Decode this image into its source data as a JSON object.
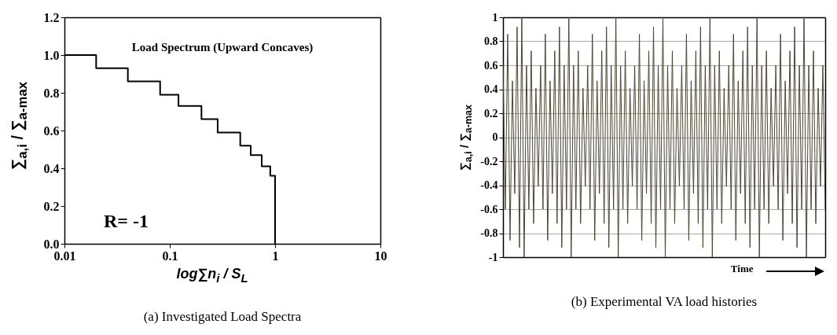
{
  "chart_data": [
    {
      "type": "step",
      "title": "(a) Investigated Load Spectra",
      "xlabel": "log∑n$_{i}$ / S$_{L}$",
      "ylabel": "∑$_{a,i}$ / ∑$_{a-max}$",
      "annotations": [
        "Load Spectrum (Upward Concaves)",
        "R= -1"
      ],
      "log": "x",
      "x": [
        0.01,
        0.02,
        0.04,
        0.081,
        0.121,
        0.2,
        0.285,
        0.467,
        0.587,
        0.747,
        0.9,
        1.0
      ],
      "series": [
        {
          "color": "#000000",
          "values": [
            1.0,
            0.93,
            0.86,
            0.79,
            0.73,
            0.66,
            0.59,
            0.52,
            0.47,
            0.41,
            0.36,
            0
          ]
        }
      ],
      "xlim": [
        0.01,
        10
      ],
      "xticks": [
        0.01,
        0.1,
        1,
        10
      ],
      "ylim": [
        0,
        1.2
      ],
      "yticks": [
        {
          "value": 0,
          "label": "0.0"
        },
        0.2,
        0.4,
        0.6,
        0.8,
        {
          "value": 1,
          "label": "1.0"
        },
        1.2
      ]
    },
    {
      "type": "line",
      "title": "(b) Experimental VA load histories",
      "xlabel": "Time",
      "ylabel": "∑$_{a,i}$ / ∑$_{a-max}$",
      "grid": "y",
      "tick_labels": "y",
      "categories": [
        null,
        null,
        null,
        null,
        null,
        null,
        null,
        null,
        null,
        null,
        null,
        null,
        null,
        null,
        null,
        null,
        null,
        null,
        null,
        null,
        null,
        null,
        null,
        null,
        null,
        null,
        null,
        null,
        null,
        null,
        null,
        null,
        null,
        null,
        null,
        null,
        null,
        null,
        null,
        null,
        null,
        null,
        null,
        null,
        null,
        null,
        null,
        null,
        null,
        null,
        null,
        null,
        null,
        null,
        null,
        null,
        null,
        null,
        null,
        null,
        null,
        null,
        null,
        null,
        null,
        null,
        null,
        null,
        null,
        null,
        null,
        null,
        null,
        null,
        null,
        null,
        null,
        null,
        null,
        null,
        null,
        null,
        null,
        null,
        null,
        null,
        null,
        null,
        null,
        null,
        null,
        null,
        null,
        null,
        null,
        null,
        null,
        null,
        null,
        null,
        null,
        null,
        null,
        null,
        null,
        null,
        null,
        null,
        null,
        null,
        null,
        null,
        null,
        null,
        null,
        null,
        null,
        null,
        null,
        null,
        null,
        null,
        null,
        null,
        null,
        null,
        null,
        null,
        null,
        null,
        null,
        null,
        null,
        null,
        null,
        null,
        null,
        null
      ],
      "series": [
        {
          "color": "#4b4430",
          "values": [
            0.6,
            -0.6,
            0.86,
            -0.86,
            0.47,
            -0.47,
            0.92,
            -0.92,
            1,
            -1,
            0.6,
            -0.6,
            0.72,
            -0.72,
            0.41,
            -0.41,
            0.6,
            -0.6,
            0.86,
            -0.86,
            0.47,
            -0.47,
            0.72,
            -0.72,
            0.92,
            -0.92,
            0.6,
            -0.6,
            1,
            -1,
            0.6,
            -0.6,
            0.72,
            -0.72,
            0.41,
            -0.41,
            0.6,
            -0.6,
            0.86,
            -0.86,
            0.47,
            -0.47,
            0.72,
            -0.72,
            0.92,
            -0.92,
            0.6,
            -0.6,
            1,
            -1,
            0.6,
            -0.6,
            0.72,
            -0.72,
            0.41,
            -0.41,
            0.6,
            -0.6,
            0.86,
            -0.86,
            0.47,
            -0.47,
            0.72,
            -0.72,
            0.92,
            -0.92,
            0.6,
            -0.6,
            1,
            -1,
            0.6,
            -0.6,
            0.72,
            -0.72,
            0.41,
            -0.41,
            0.6,
            -0.6,
            0.86,
            -0.86,
            0.47,
            -0.47,
            0.72,
            -0.72,
            0.92,
            -0.92,
            0.6,
            -0.6,
            1,
            -1,
            0.6,
            -0.6,
            0.72,
            -0.72,
            0.41,
            -0.41,
            0.6,
            -0.6,
            0.86,
            -0.86,
            0.47,
            -0.47,
            0.72,
            -0.72,
            0.92,
            -0.92,
            0.6,
            -0.6,
            1,
            -1,
            0.6,
            -0.6,
            0.72,
            -0.72,
            0.41,
            -0.41,
            0.6,
            -0.6,
            0.86,
            -0.86,
            0.47,
            -0.47,
            0.72,
            -0.72,
            0.92,
            -0.92,
            0.6,
            -0.6,
            1,
            -1,
            0.6,
            -0.6,
            0.72,
            -0.72,
            0.41,
            -0.41,
            0.6,
            -0.6
          ]
        }
      ],
      "ylim": [
        -1,
        1
      ],
      "yticks": [
        -1,
        -0.8,
        -0.6,
        -0.4,
        -0.2,
        0,
        0.2,
        0.4,
        0.6,
        0.8,
        1
      ]
    }
  ]
}
